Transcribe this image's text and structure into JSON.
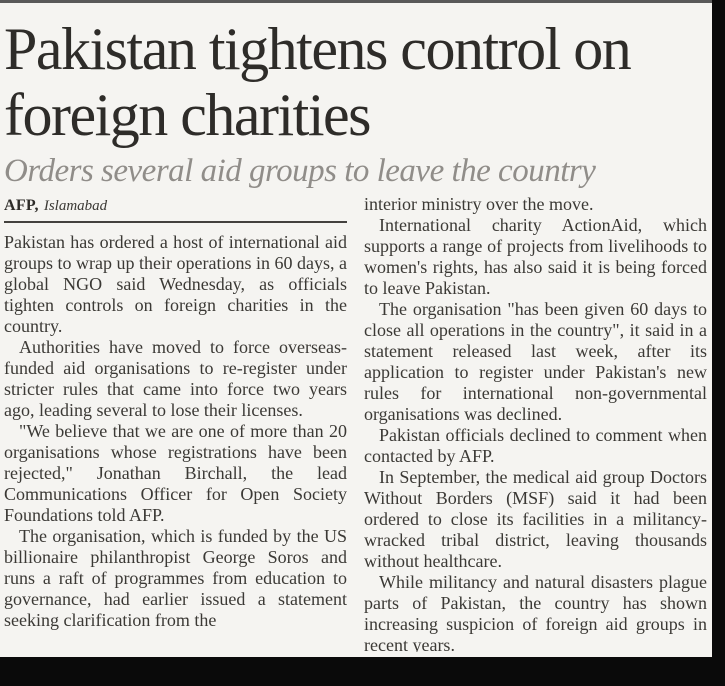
{
  "article": {
    "headline": "Pakistan tightens control on foreign charities",
    "subheadline": "Orders several aid groups to leave the country",
    "byline": {
      "agency": "AFP,",
      "location": "Islamabad"
    },
    "left_paragraphs": [
      "Pakistan has ordered a host of international aid groups to wrap up their operations in 60 days, a global NGO said Wednesday, as officials tighten controls on foreign charities in the country.",
      "Authorities have moved to force overseas-funded aid organisations to re-register under stricter rules that came into force two years ago, leading several to lose their licenses.",
      "\"We believe that we are one of more than 20 organisations whose registrations have been rejected,\" Jonathan Birchall, the lead Communications Officer for Open Society Foundations told AFP.",
      "The organisation, which is funded by the US billionaire philanthropist George Soros and runs a raft of programmes from education to governance, had earlier issued a statement seeking clarification from the"
    ],
    "right_paragraphs": [
      "interior ministry over the move.",
      "International charity ActionAid, which supports a range of projects from livelihoods to women's rights, has also said it is being forced to leave Pakistan.",
      "The organisation \"has been given 60 days to close all operations in the country\", it said in a statement released last week, after its application to register under Pakistan's new rules for international non-governmental organisations was declined.",
      "Pakistan officials declined to comment when contacted by AFP.",
      "In September, the medical aid group Doctors Without Borders (MSF) said it had been ordered to close its facilities in a militancy-wracked tribal district, leaving thousands without healthcare.",
      "While militancy and natural disasters plague parts of Pakistan, the country has shown increasing suspicion of foreign aid groups in recent years."
    ]
  },
  "colors": {
    "paper": "#f5f4f1",
    "ink": "#3b3935",
    "headline_ink": "#2e2c29",
    "subhead_gray": "#908d89",
    "rule": "#43413e",
    "edge_black": "#0a0a0a",
    "top_line": "#595959"
  }
}
